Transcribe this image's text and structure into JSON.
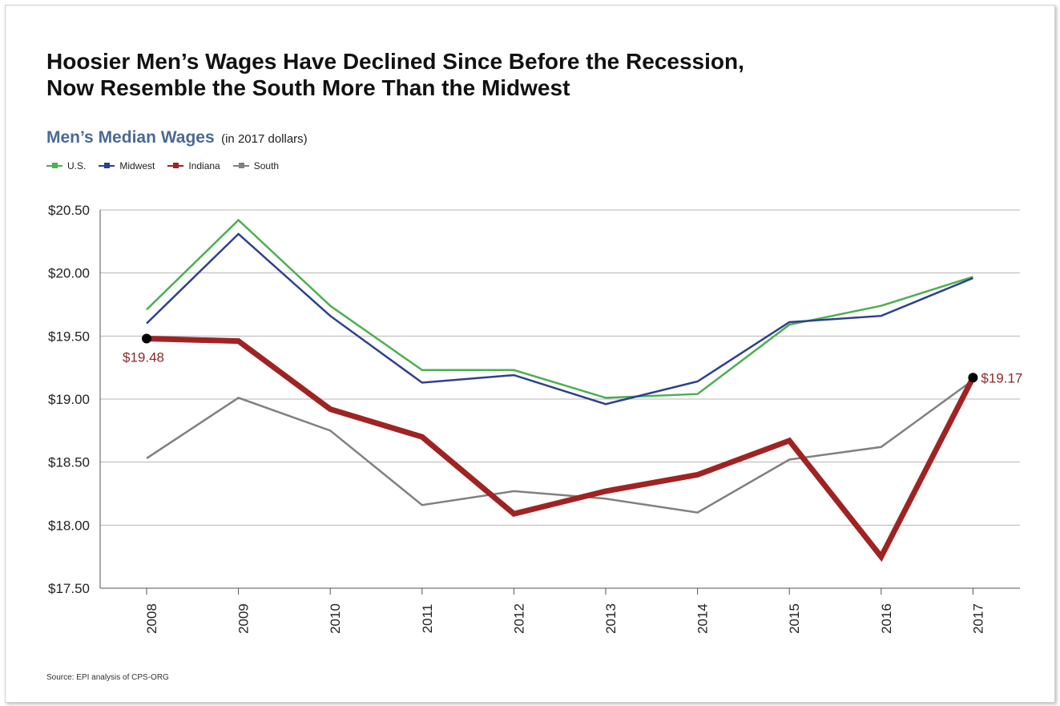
{
  "chart_data": {
    "type": "line",
    "title_lines": [
      "Hoosier Men’s Wages Have Declined Since Before the Recession,",
      "Now Resemble the South More Than the Midwest"
    ],
    "subtitle": "Men’s Median Wages",
    "subtitle_note": "(in 2017 dollars)",
    "x": [
      "2008",
      "2009",
      "2010",
      "2011",
      "2012",
      "2013",
      "2014",
      "2015",
      "2016",
      "2017"
    ],
    "y_ticks": [
      "$20.50",
      "$20.00",
      "$19.50",
      "$19.00",
      "$18.50",
      "$18.00",
      "$17.50"
    ],
    "ylim": [
      17.5,
      20.5
    ],
    "grid": true,
    "legend_position": "top-left",
    "series": [
      {
        "name": "U.S.",
        "color": "#4caf50",
        "width": 2.5,
        "values": [
          19.71,
          20.42,
          19.74,
          19.23,
          19.23,
          19.01,
          19.04,
          19.59,
          19.74,
          19.97
        ]
      },
      {
        "name": "Midwest",
        "color": "#2e3f8f",
        "width": 2.5,
        "values": [
          19.6,
          20.31,
          19.66,
          19.13,
          19.19,
          18.96,
          19.14,
          19.61,
          19.66,
          19.96
        ]
      },
      {
        "name": "Indiana",
        "color": "#a02323",
        "width": 7,
        "values": [
          19.48,
          19.46,
          18.92,
          18.7,
          18.09,
          18.27,
          18.4,
          18.67,
          17.75,
          19.17
        ]
      },
      {
        "name": "South",
        "color": "#808080",
        "width": 2.5,
        "values": [
          18.53,
          19.01,
          18.75,
          18.16,
          18.27,
          18.21,
          18.1,
          18.52,
          18.62,
          19.15
        ]
      }
    ],
    "annotations": [
      {
        "label": "$19.48",
        "x": "2008",
        "y": 19.48,
        "color": "#8b2a2a"
      },
      {
        "label": "$19.17",
        "x": "2017",
        "y": 19.17,
        "color": "#8b2a2a"
      }
    ],
    "source": "Source: EPI analysis of CPS-ORG"
  }
}
